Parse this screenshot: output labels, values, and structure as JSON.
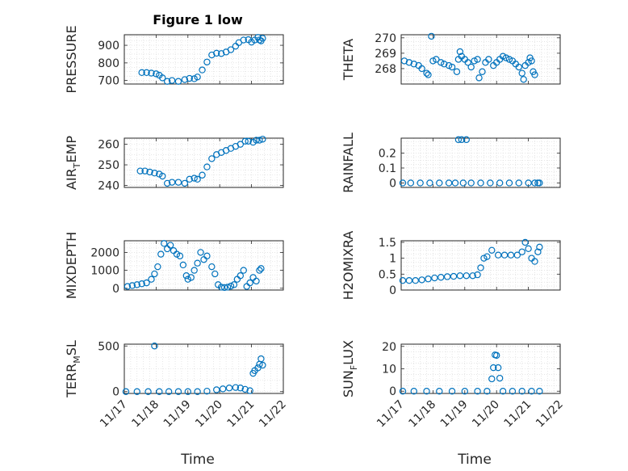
{
  "figure": {
    "title": "Figure 1 low",
    "marker_color": "#0072BD",
    "x_tick_labels": [
      "11/17",
      "11/18",
      "11/19",
      "11/20",
      "11/21",
      "11/22"
    ],
    "xlabel": "Time"
  },
  "chart_data": [
    {
      "type": "scatter",
      "ylabel": "PRESSURE",
      "ylim": [
        680,
        960
      ],
      "yticks": [
        700,
        800,
        900
      ],
      "grid": true,
      "series": [
        {
          "x": [
            17.55,
            17.7,
            17.85,
            18.0,
            18.1,
            18.2,
            18.35,
            18.5,
            18.7,
            18.9,
            19.05,
            19.2,
            19.3,
            19.45,
            19.6,
            19.75,
            19.9,
            20.05,
            20.2,
            20.35,
            20.5,
            20.6,
            20.75,
            20.9,
            21.0,
            21.1,
            21.2,
            21.25,
            21.3,
            21.35
          ],
          "y": [
            745,
            745,
            742,
            738,
            730,
            715,
            695,
            700,
            695,
            705,
            712,
            710,
            720,
            760,
            805,
            845,
            855,
            853,
            862,
            875,
            895,
            915,
            930,
            932,
            918,
            930,
            945,
            930,
            925,
            940
          ]
        }
      ]
    },
    {
      "type": "scatter",
      "ylabel": "THETA",
      "ylim": [
        267,
        270.2
      ],
      "yticks": [
        268,
        269,
        270
      ],
      "grid": true,
      "series": [
        {
          "x": [
            17.1,
            17.25,
            17.4,
            17.55,
            17.65,
            17.8,
            17.85,
            17.95,
            18.0,
            18.1,
            18.25,
            18.35,
            18.5,
            18.6,
            18.75,
            18.8,
            18.85,
            18.9,
            19.0,
            19.1,
            19.2,
            19.3,
            19.4,
            19.45,
            19.55,
            19.65,
            19.75,
            19.9,
            20.0,
            20.1,
            20.2,
            20.3,
            20.4,
            20.5,
            20.6,
            20.7,
            20.8,
            20.85,
            20.9,
            21.0,
            21.05,
            21.1,
            21.15,
            21.2
          ],
          "y": [
            268.5,
            268.4,
            268.3,
            268.2,
            268.0,
            267.7,
            267.6,
            270.1,
            268.5,
            268.6,
            268.4,
            268.3,
            268.2,
            268.1,
            267.8,
            268.6,
            269.1,
            268.8,
            268.6,
            268.4,
            268.1,
            268.5,
            268.6,
            267.4,
            267.8,
            268.4,
            268.6,
            268.2,
            268.4,
            268.6,
            268.8,
            268.7,
            268.6,
            268.5,
            268.3,
            268.1,
            267.7,
            267.3,
            268.2,
            268.4,
            268.7,
            268.5,
            267.8,
            267.6
          ]
        }
      ]
    },
    {
      "type": "scatter",
      "ylabel": "AIR_TEMP",
      "ylim": [
        239,
        263
      ],
      "yticks": [
        240,
        250,
        260
      ],
      "grid": true,
      "series": [
        {
          "x": [
            17.5,
            17.65,
            17.8,
            17.95,
            18.1,
            18.2,
            18.35,
            18.5,
            18.7,
            18.9,
            19.05,
            19.2,
            19.3,
            19.45,
            19.6,
            19.75,
            19.9,
            20.05,
            20.2,
            20.35,
            20.5,
            20.65,
            20.8,
            20.9,
            21.05,
            21.15,
            21.25,
            21.35
          ],
          "y": [
            247,
            247,
            246.5,
            246,
            245.5,
            244.5,
            241,
            241.5,
            241.5,
            241,
            243,
            243.5,
            243,
            245,
            249,
            253,
            255,
            256,
            257,
            258,
            259,
            260,
            261.5,
            261.5,
            261,
            262,
            262,
            262.5
          ]
        }
      ]
    },
    {
      "type": "scatter",
      "ylabel": "RAINFALL",
      "ylim": [
        -0.03,
        0.3
      ],
      "yticks": [
        0,
        0.1,
        0.2
      ],
      "grid": true,
      "series": [
        {
          "x": [
            17.05,
            17.3,
            17.6,
            17.9,
            18.2,
            18.5,
            18.7,
            18.8,
            18.9,
            18.95,
            19.05,
            19.2,
            19.5,
            19.8,
            20.1,
            20.4,
            20.7,
            21.0,
            21.2,
            21.3,
            21.35
          ],
          "y": [
            0,
            0,
            0,
            0,
            0,
            0,
            0,
            0.29,
            0.29,
            0,
            0.29,
            0,
            0,
            0,
            0,
            0,
            0,
            0,
            0,
            0,
            0
          ]
        }
      ]
    },
    {
      "type": "scatter",
      "ylabel": "MIXDEPTH",
      "ylim": [
        -100,
        2650
      ],
      "yticks": [
        0,
        1000,
        2000
      ],
      "grid": true,
      "series": [
        {
          "x": [
            17.1,
            17.25,
            17.4,
            17.55,
            17.7,
            17.85,
            17.95,
            18.05,
            18.15,
            18.25,
            18.35,
            18.45,
            18.55,
            18.65,
            18.75,
            18.85,
            18.95,
            19.0,
            19.1,
            19.2,
            19.3,
            19.4,
            19.5,
            19.6,
            19.75,
            19.85,
            19.95,
            20.05,
            20.15,
            20.25,
            20.35,
            20.45,
            20.55,
            20.65,
            20.75,
            20.85,
            20.95,
            21.05,
            21.15,
            21.25,
            21.3
          ],
          "y": [
            100,
            150,
            200,
            250,
            300,
            500,
            800,
            1200,
            1900,
            2500,
            2200,
            2400,
            2100,
            1900,
            1800,
            1300,
            700,
            500,
            600,
            1000,
            1400,
            2000,
            1600,
            1800,
            1200,
            800,
            200,
            60,
            40,
            60,
            120,
            200,
            500,
            700,
            1000,
            100,
            300,
            600,
            400,
            1000,
            1100
          ]
        }
      ]
    },
    {
      "type": "scatter",
      "ylabel": "H2OMIXRA",
      "ylim": [
        0,
        1.55
      ],
      "yticks": [
        0,
        0.5,
        1,
        1.5
      ],
      "grid": true,
      "series": [
        {
          "x": [
            17.05,
            17.25,
            17.45,
            17.65,
            17.85,
            18.05,
            18.25,
            18.45,
            18.65,
            18.85,
            19.05,
            19.25,
            19.4,
            19.5,
            19.6,
            19.7,
            19.85,
            20.05,
            20.25,
            20.45,
            20.65,
            20.8,
            20.9,
            21.0,
            21.1,
            21.2,
            21.3,
            21.35
          ],
          "y": [
            0.3,
            0.3,
            0.3,
            0.32,
            0.35,
            0.38,
            0.4,
            0.42,
            0.43,
            0.45,
            0.45,
            0.45,
            0.48,
            0.7,
            1.0,
            1.05,
            1.25,
            1.1,
            1.1,
            1.1,
            1.1,
            1.2,
            1.5,
            1.3,
            1.0,
            0.9,
            1.2,
            1.35
          ]
        }
      ]
    },
    {
      "type": "scatter",
      "ylabel": "TERR_MSL",
      "ylim": [
        -20,
        520
      ],
      "yticks": [
        0,
        500
      ],
      "grid": true,
      "series": [
        {
          "x": [
            17.05,
            17.4,
            17.75,
            17.95,
            18.1,
            18.4,
            18.7,
            19.0,
            19.3,
            19.6,
            19.9,
            20.1,
            20.3,
            20.5,
            20.65,
            20.8,
            20.95,
            21.05,
            21.1,
            21.2,
            21.25,
            21.3,
            21.35
          ],
          "y": [
            0,
            0,
            0,
            500,
            0,
            0,
            0,
            0,
            0,
            5,
            20,
            30,
            40,
            45,
            40,
            25,
            10,
            200,
            230,
            260,
            300,
            360,
            290
          ]
        }
      ]
    },
    {
      "type": "scatter",
      "ylabel": "SUN_FLUX",
      "ylim": [
        -1,
        21
      ],
      "yticks": [
        0,
        10,
        20
      ],
      "grid": true,
      "series": [
        {
          "x": [
            17.05,
            17.4,
            17.8,
            18.2,
            18.6,
            19.0,
            19.4,
            19.7,
            19.85,
            19.9,
            19.95,
            20.0,
            20.05,
            20.1,
            20.2,
            20.5,
            20.8,
            21.1,
            21.35
          ],
          "y": [
            0,
            0,
            0,
            0,
            0,
            0,
            0,
            0,
            5.5,
            10.5,
            16.2,
            16,
            10.5,
            5.8,
            0,
            0,
            0,
            0,
            0
          ]
        }
      ]
    }
  ]
}
